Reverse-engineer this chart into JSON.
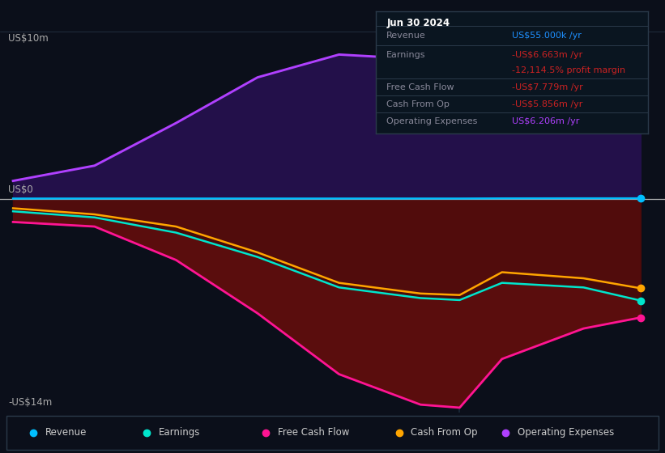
{
  "background_color": "#0b0f1a",
  "plot_bg_color": "#0b0f1a",
  "ylabel_top": "US$10m",
  "ylabel_zero": "US$0",
  "ylabel_bot": "-US$14m",
  "ylim": [
    -14,
    11
  ],
  "xlim": [
    2020.67,
    2024.75
  ],
  "xticks": [
    2021,
    2022,
    2023,
    2024
  ],
  "vline_x": 2023.49,
  "series": {
    "revenue": {
      "color": "#00bfff",
      "label": "Revenue",
      "values_x": [
        2020.75,
        2021.25,
        2021.75,
        2022.25,
        2022.75,
        2023.25,
        2023.49,
        2023.75,
        2024.25,
        2024.6
      ],
      "values_y": [
        0.04,
        0.04,
        0.04,
        0.04,
        0.04,
        0.04,
        0.04,
        0.05,
        0.055,
        0.055
      ]
    },
    "earnings": {
      "color": "#00e5cc",
      "label": "Earnings",
      "values_x": [
        2020.75,
        2021.25,
        2021.75,
        2022.25,
        2022.75,
        2023.25,
        2023.49,
        2023.75,
        2024.25,
        2024.6
      ],
      "values_y": [
        -0.8,
        -1.2,
        -2.2,
        -3.8,
        -5.8,
        -6.5,
        -6.63,
        -5.5,
        -5.8,
        -6.663
      ]
    },
    "free_cash_flow": {
      "color": "#ff1493",
      "label": "Free Cash Flow",
      "values_x": [
        2020.75,
        2021.25,
        2021.75,
        2022.25,
        2022.75,
        2023.25,
        2023.49,
        2023.75,
        2024.25,
        2024.6
      ],
      "values_y": [
        -1.5,
        -1.8,
        -4.0,
        -7.5,
        -11.5,
        -13.5,
        -13.7,
        -10.5,
        -8.5,
        -7.779
      ]
    },
    "cash_from_op": {
      "color": "#ffa500",
      "label": "Cash From Op",
      "values_x": [
        2020.75,
        2021.25,
        2021.75,
        2022.25,
        2022.75,
        2023.25,
        2023.49,
        2023.75,
        2024.25,
        2024.6
      ],
      "values_y": [
        -0.6,
        -1.0,
        -1.8,
        -3.5,
        -5.5,
        -6.2,
        -6.3,
        -4.8,
        -5.2,
        -5.856
      ]
    },
    "operating_expenses": {
      "color": "#b040ff",
      "label": "Operating Expenses",
      "values_x": [
        2020.75,
        2021.25,
        2021.75,
        2022.25,
        2022.75,
        2023.25,
        2023.49,
        2023.75,
        2024.25,
        2024.6
      ],
      "values_y": [
        1.2,
        2.2,
        5.0,
        8.0,
        9.5,
        9.2,
        8.8,
        7.0,
        5.8,
        6.206
      ]
    }
  },
  "info_box": {
    "title": "Jun 30 2024",
    "rows": [
      {
        "label": "Revenue",
        "value": "US$55.000k /yr",
        "value_color": "#1e90ff"
      },
      {
        "label": "Earnings",
        "value": "-US$6.663m /yr",
        "value_color": "#cc2222"
      },
      {
        "label": "",
        "value": "-12,114.5% profit margin",
        "value_color": "#cc2222"
      },
      {
        "label": "Free Cash Flow",
        "value": "-US$7.779m /yr",
        "value_color": "#cc2222"
      },
      {
        "label": "Cash From Op",
        "value": "-US$5.856m /yr",
        "value_color": "#cc2222"
      },
      {
        "label": "Operating Expenses",
        "value": "US$6.206m /yr",
        "value_color": "#b040ff"
      }
    ]
  },
  "legend_items": [
    {
      "label": "Revenue",
      "color": "#00bfff"
    },
    {
      "label": "Earnings",
      "color": "#00e5cc"
    },
    {
      "label": "Free Cash Flow",
      "color": "#ff1493"
    },
    {
      "label": "Cash From Op",
      "color": "#ffa500"
    },
    {
      "label": "Operating Expenses",
      "color": "#b040ff"
    }
  ]
}
